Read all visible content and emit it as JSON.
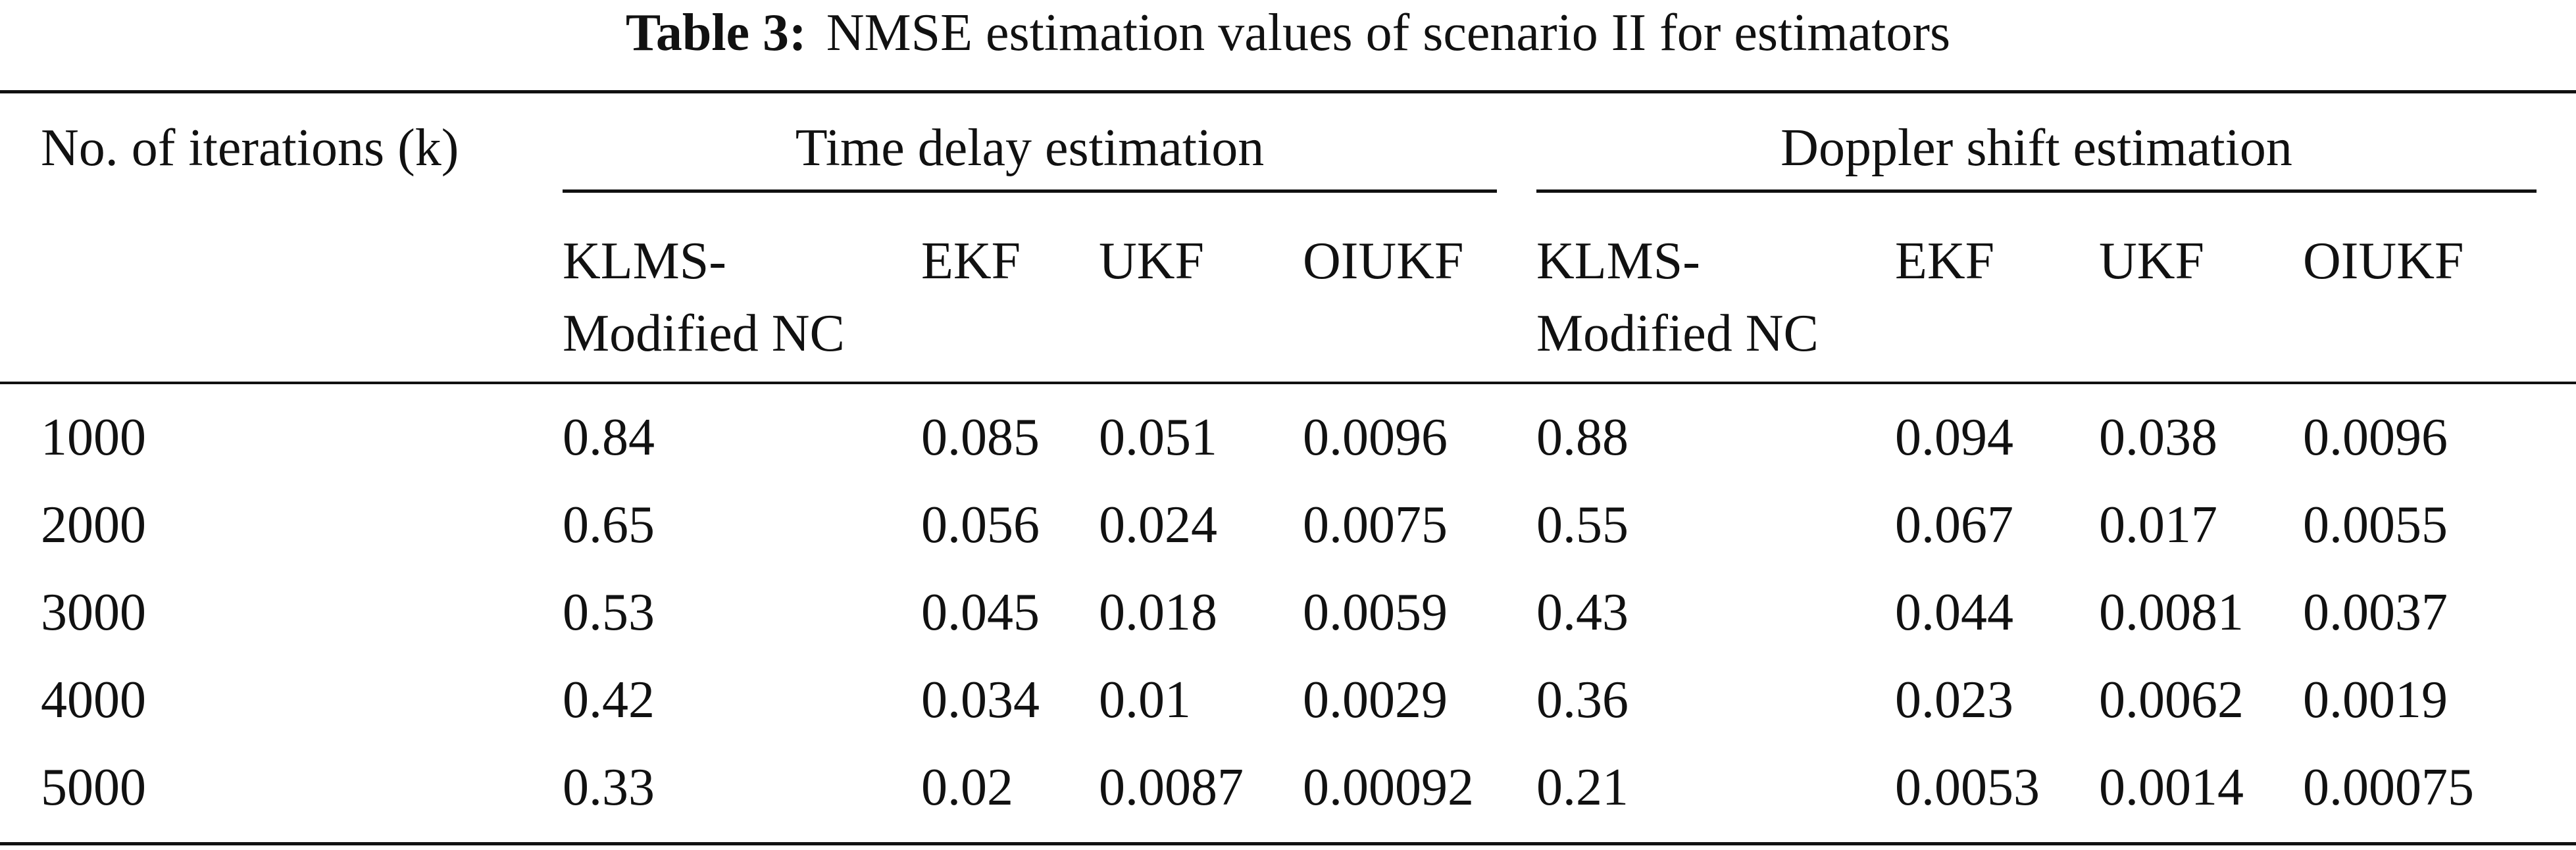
{
  "caption": {
    "label": "Table 3:",
    "text": "NMSE estimation values of scenario II for estimators"
  },
  "table": {
    "row_header_label": "No. of iterations (k)",
    "groups": [
      {
        "label": "Time delay estimation",
        "columns": [
          {
            "line1": "KLMS-",
            "line2": "Modified NC"
          },
          {
            "line1": "EKF",
            "line2": ""
          },
          {
            "line1": "UKF",
            "line2": ""
          },
          {
            "line1": "OIUKF",
            "line2": ""
          }
        ]
      },
      {
        "label": "Doppler shift estimation",
        "columns": [
          {
            "line1": "KLMS-",
            "line2": "Modified NC"
          },
          {
            "line1": "EKF",
            "line2": ""
          },
          {
            "line1": "UKF",
            "line2": ""
          },
          {
            "line1": "OIUKF",
            "line2": ""
          }
        ]
      }
    ],
    "rows": [
      {
        "k": "1000",
        "values": [
          "0.84",
          "0.085",
          "0.051",
          "0.0096",
          "0.88",
          "0.094",
          "0.038",
          "0.0096"
        ]
      },
      {
        "k": "2000",
        "values": [
          "0.65",
          "0.056",
          "0.024",
          "0.0075",
          "0.55",
          "0.067",
          "0.017",
          "0.0055"
        ]
      },
      {
        "k": "3000",
        "values": [
          "0.53",
          "0.045",
          "0.018",
          "0.0059",
          "0.43",
          "0.044",
          "0.0081",
          "0.0037"
        ]
      },
      {
        "k": "4000",
        "values": [
          "0.42",
          "0.034",
          "0.01",
          "0.0029",
          "0.36",
          "0.023",
          "0.0062",
          "0.0019"
        ]
      },
      {
        "k": "5000",
        "values": [
          "0.33",
          "0.02",
          "0.0087",
          "0.00092",
          "0.21",
          "0.0053",
          "0.0014",
          "0.00075"
        ]
      }
    ]
  }
}
